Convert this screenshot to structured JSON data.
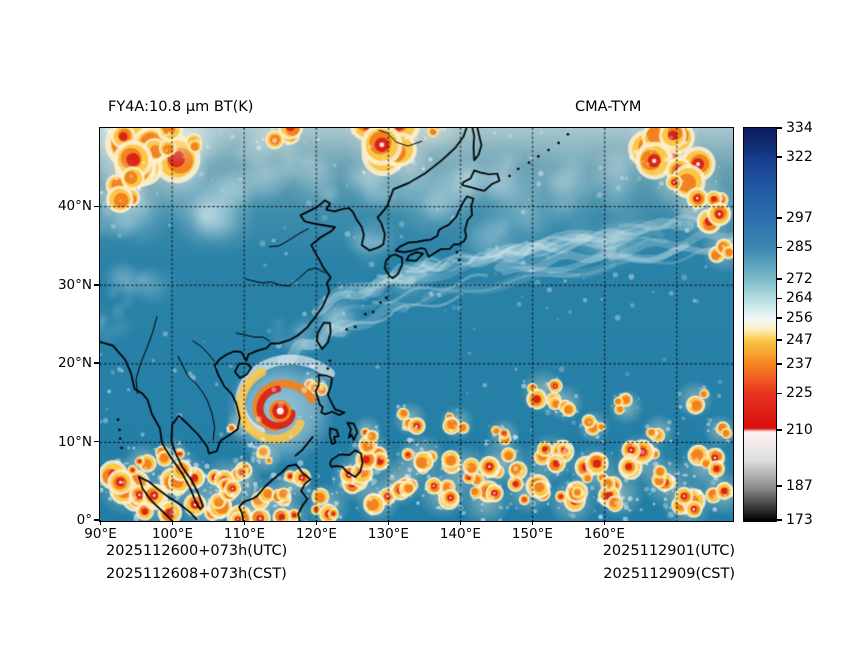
{
  "titles": {
    "left": "FY4A:10.8 μm BT(K)",
    "right": "CMA-TYM"
  },
  "footer": {
    "left_line1": "2025112600+073h(UTC)",
    "left_line2": "2025112608+073h(CST)",
    "right_line1": "2025112901(UTC)",
    "right_line2": "2025112909(CST)"
  },
  "axes": {
    "x_ticks": [
      "90°E",
      "100°E",
      "110°E",
      "120°E",
      "130°E",
      "140°E",
      "150°E",
      "160°E"
    ],
    "x_tick_lons": [
      90,
      100,
      110,
      120,
      130,
      140,
      150,
      160
    ],
    "y_ticks": [
      "0°",
      "10°N",
      "20°N",
      "30°N",
      "40°N"
    ],
    "y_tick_lats": [
      0,
      10,
      20,
      30,
      40
    ],
    "grid_lons": [
      100,
      110,
      120,
      130,
      140,
      150,
      160,
      170
    ],
    "grid_lats": [
      10,
      20,
      30,
      40
    ],
    "lon_range": [
      90,
      177.8
    ],
    "lat_range": [
      0,
      50
    ]
  },
  "colorbar": {
    "unit": "K",
    "min": 173,
    "max": 334,
    "ticks": [
      334,
      322,
      297,
      285,
      272,
      264,
      256,
      247,
      237,
      225,
      210,
      187,
      173
    ],
    "stops": [
      {
        "v": 334,
        "c": "#0c1a5e"
      },
      {
        "v": 326,
        "c": "#113076"
      },
      {
        "v": 322,
        "c": "#153e8e"
      },
      {
        "v": 310,
        "c": "#2058a2"
      },
      {
        "v": 297,
        "c": "#2b70ac"
      },
      {
        "v": 285,
        "c": "#3a87b0"
      },
      {
        "v": 272,
        "c": "#7cbbc8"
      },
      {
        "v": 264,
        "c": "#b5dde1"
      },
      {
        "v": 256,
        "c": "#eff8f6"
      },
      {
        "v": 252,
        "c": "#fdf2cb"
      },
      {
        "v": 247,
        "c": "#fbc746"
      },
      {
        "v": 237,
        "c": "#f5821f"
      },
      {
        "v": 225,
        "c": "#e73322"
      },
      {
        "v": 211,
        "c": "#d90f0f"
      },
      {
        "v": 209.5,
        "c": "#fff1f1"
      },
      {
        "v": 198,
        "c": "#dedede"
      },
      {
        "v": 187,
        "c": "#8f8f8f"
      },
      {
        "v": 173,
        "c": "#000000"
      }
    ]
  },
  "chart_data": {
    "type": "heatmap",
    "title": "FY4A:10.8 μm BT(K)",
    "model": "CMA-TYM",
    "variable": "simulated 10.8 μm brightness temperature",
    "unit": "K",
    "init_utc": "2025112600",
    "lead": "+073h",
    "valid_utc": "2025112901",
    "init_cst": "2025112608",
    "valid_cst": "2025112909",
    "extent": {
      "lon": [
        90,
        177.8
      ],
      "lat": [
        0,
        50
      ]
    },
    "colorbar_ticks": [
      334,
      322,
      297,
      285,
      272,
      264,
      256,
      247,
      237,
      225,
      210,
      187,
      173
    ],
    "render": {
      "base_gradient": [
        {
          "at": 0.0,
          "c": "#a9c7ce"
        },
        {
          "at": 0.1,
          "c": "#6aa2b4"
        },
        {
          "at": 0.22,
          "c": "#3d8cab"
        },
        {
          "at": 0.34,
          "c": "#2a82a8"
        },
        {
          "at": 1.0,
          "c": "#227ea6"
        }
      ],
      "light_patches_format": [
        "lon",
        "lat",
        "rx_deg",
        "ry_deg",
        "alpha"
      ],
      "light_patches": [
        [
          98,
          45,
          9,
          6,
          1.0
        ],
        [
          92,
          39,
          5,
          4,
          0.55
        ],
        [
          104,
          41,
          6,
          4,
          0.5
        ],
        [
          111,
          45,
          5,
          4,
          0.45
        ],
        [
          119,
          44,
          5,
          3.5,
          0.4
        ],
        [
          127,
          43,
          4,
          3,
          0.4
        ],
        [
          135,
          42.5,
          6,
          3.5,
          0.5
        ],
        [
          143,
          44,
          5,
          3,
          0.4
        ],
        [
          151,
          41,
          6,
          3,
          0.35
        ],
        [
          159,
          43,
          6,
          3.5,
          0.35
        ],
        [
          170,
          41,
          4,
          3,
          0.3
        ],
        [
          128,
          36,
          4,
          2.5,
          0.3
        ],
        [
          146,
          36,
          5,
          2.5,
          0.3
        ],
        [
          160,
          36.5,
          5,
          2.5,
          0.3
        ],
        [
          95,
          30,
          4,
          3,
          0.35
        ],
        [
          91,
          25,
          3,
          2.5,
          0.3
        ],
        [
          117,
          23.5,
          3,
          2,
          0.3
        ],
        [
          123,
          27,
          3.5,
          2.5,
          0.35
        ],
        [
          133,
          31,
          4,
          2,
          0.3
        ]
      ],
      "cirrus": {
        "points": [
          [
            112,
            21.5
          ],
          [
            120,
            25.5
          ],
          [
            130,
            29
          ],
          [
            142,
            31.5
          ],
          [
            155,
            33.5
          ],
          [
            168,
            35
          ],
          [
            177.8,
            36.5
          ]
        ]
      },
      "typhoon": {
        "lon": 115,
        "lat": 14
      },
      "clusters_format": [
        "lon",
        "lat",
        "spread_deg",
        "n_cells",
        "red_fraction"
      ],
      "clusters": [
        [
          96.5,
          46.5,
          4.2,
          9,
          0.5
        ],
        [
          92.5,
          42.5,
          2.4,
          5,
          0.35
        ],
        [
          101,
          48.5,
          2.2,
          4,
          0.3
        ],
        [
          114.5,
          49.2,
          2.0,
          4,
          0.25
        ],
        [
          130.5,
          48.5,
          3.6,
          8,
          0.45
        ],
        [
          136.5,
          49.8,
          1.8,
          3,
          0.3
        ],
        [
          168,
          47.5,
          3.0,
          7,
          0.6
        ],
        [
          171.5,
          43.5,
          2.8,
          6,
          0.65
        ],
        [
          174.5,
          39.5,
          2.4,
          5,
          0.5
        ],
        [
          176.5,
          34.5,
          1.8,
          4,
          0.3
        ],
        [
          120,
          17.5,
          1.3,
          3,
          0.35
        ],
        [
          109.3,
          12.3,
          1.1,
          2,
          0.3
        ],
        [
          113,
          8,
          1.3,
          3,
          0.4
        ],
        [
          110,
          5.5,
          1.5,
          3,
          0.45
        ],
        [
          93.5,
          4.5,
          2.4,
          6,
          0.6
        ],
        [
          97.5,
          2.5,
          2.2,
          5,
          0.6
        ],
        [
          96,
          7.5,
          1.5,
          3,
          0.35
        ],
        [
          101,
          5.5,
          2.3,
          6,
          0.55
        ],
        [
          100,
          8.2,
          1.5,
          3,
          0.3
        ],
        [
          104.5,
          2,
          2.2,
          5,
          0.6
        ],
        [
          107.5,
          5,
          2.0,
          5,
          0.5
        ],
        [
          111,
          1.5,
          2.0,
          4,
          0.5
        ],
        [
          114,
          2.8,
          1.8,
          4,
          0.5
        ],
        [
          117,
          4.8,
          1.5,
          3,
          0.4
        ],
        [
          116.5,
          0.8,
          1.5,
          3,
          0.5
        ],
        [
          121.5,
          2,
          1.8,
          4,
          0.45
        ],
        [
          125.5,
          5.5,
          2.0,
          5,
          0.5
        ],
        [
          128.5,
          2.5,
          1.8,
          4,
          0.5
        ],
        [
          127.5,
          8.5,
          1.8,
          4,
          0.45
        ],
        [
          131.5,
          5,
          2.0,
          5,
          0.5
        ],
        [
          134.5,
          8,
          2.0,
          5,
          0.5
        ],
        [
          137.5,
          3.5,
          2.0,
          5,
          0.55
        ],
        [
          140.5,
          6.5,
          2.0,
          5,
          0.5
        ],
        [
          143.5,
          2.5,
          2.0,
          4,
          0.5
        ],
        [
          146,
          7.5,
          2.0,
          5,
          0.55
        ],
        [
          149.5,
          4,
          2.0,
          5,
          0.5
        ],
        [
          152.5,
          8,
          2.0,
          5,
          0.5
        ],
        [
          155.5,
          2.5,
          2.0,
          4,
          0.5
        ],
        [
          158.5,
          6.5,
          2.0,
          5,
          0.55
        ],
        [
          162,
          3.5,
          2.0,
          5,
          0.5
        ],
        [
          165,
          8,
          2.0,
          5,
          0.5
        ],
        [
          168.5,
          5,
          2.0,
          4,
          0.5
        ],
        [
          171.5,
          2,
          2.0,
          4,
          0.45
        ],
        [
          174,
          7,
          2.0,
          4,
          0.5
        ],
        [
          176.5,
          3.5,
          1.8,
          3,
          0.45
        ],
        [
          133,
          13,
          1.4,
          3,
          0.4
        ],
        [
          139.5,
          12.5,
          1.4,
          3,
          0.35
        ],
        [
          146,
          11,
          1.3,
          3,
          0.35
        ],
        [
          151.5,
          16.5,
          1.8,
          4,
          0.6
        ],
        [
          154.5,
          15,
          1.5,
          3,
          0.5
        ],
        [
          158.5,
          12,
          1.3,
          3,
          0.35
        ],
        [
          163,
          14.5,
          1.4,
          3,
          0.35
        ],
        [
          167.5,
          11.5,
          1.3,
          3,
          0.3
        ],
        [
          172.5,
          15.5,
          1.5,
          3,
          0.4
        ],
        [
          176,
          11.5,
          1.3,
          3,
          0.35
        ],
        [
          127,
          11.5,
          1.2,
          2,
          0.3
        ]
      ],
      "speckles": [
        {
          "lon": [
            90,
            178
          ],
          "lat": [
            0,
            11
          ],
          "n": 130,
          "a": [
            0.25,
            0.6
          ]
        },
        {
          "lon": [
            110,
            178
          ],
          "lat": [
            24,
            36
          ],
          "n": 55,
          "a": [
            0.15,
            0.4
          ]
        },
        {
          "lon": [
            90,
            178
          ],
          "lat": [
            36,
            50
          ],
          "n": 60,
          "a": [
            0.15,
            0.4
          ]
        },
        {
          "lon": [
            90,
            120
          ],
          "lat": [
            11,
            24
          ],
          "n": 30,
          "a": [
            0.2,
            0.45
          ]
        },
        {
          "lon": [
            120,
            178
          ],
          "lat": [
            11,
            22
          ],
          "n": 18,
          "a": [
            0.15,
            0.35
          ]
        }
      ]
    }
  }
}
